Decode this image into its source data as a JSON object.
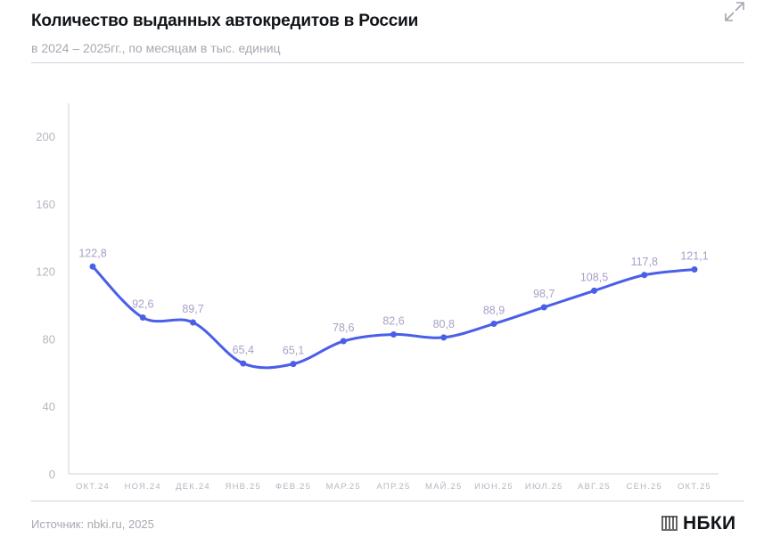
{
  "header": {
    "title": "Количество выданных автокредитов в России",
    "subtitle": "в 2024 – 2025гг., по месяцам в тыс. единиц",
    "expand_icon": "expand-icon"
  },
  "footer": {
    "source": "Источник: nbki.ru, 2025",
    "logo_text": "НБКИ",
    "logo_icon": "columns-icon"
  },
  "colors": {
    "line": "#4a5ee8",
    "axis": "#cfd2dc",
    "tick_text": "#b4b7c2",
    "label_text": "#a8a0c8"
  },
  "chart_data": {
    "type": "line",
    "categories": [
      "ОКТ.24",
      "НОЯ.24",
      "ДЕК.24",
      "ЯНВ.25",
      "ФЕВ.25",
      "МАР.25",
      "АПР.25",
      "МАЙ.25",
      "ИЮН.25",
      "ИЮЛ.25",
      "АВГ.25",
      "СЕН.25",
      "ОКТ.25"
    ],
    "series": [
      {
        "values": [
          122.8,
          92.6,
          89.7,
          65.4,
          65.1,
          78.6,
          82.6,
          80.8,
          88.9,
          98.7,
          108.5,
          117.8,
          121.1
        ],
        "labels": [
          "122,8",
          "92,6",
          "89,7",
          "65,4",
          "65,1",
          "78,6",
          "82,6",
          "80,8",
          "88,9",
          "98,7",
          "108,5",
          "117,8",
          "121,1"
        ]
      }
    ],
    "y_ticks": [
      0,
      40,
      80,
      120,
      160,
      200
    ],
    "ylim": [
      0,
      220
    ],
    "grid": false,
    "smooth": true
  }
}
